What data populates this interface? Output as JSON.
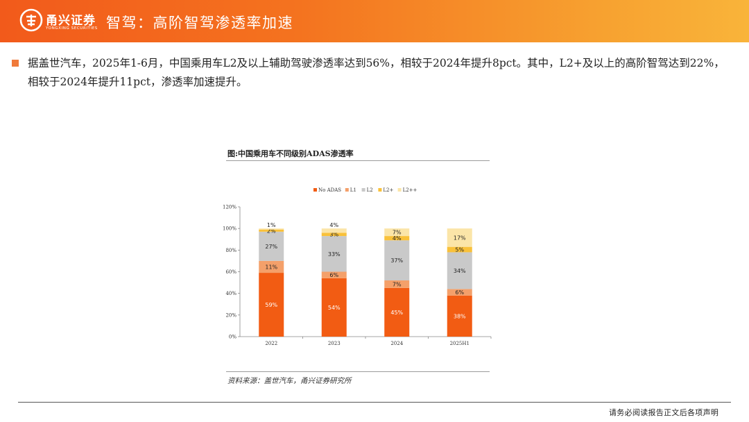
{
  "header": {
    "brand": "甬兴证券",
    "brand_en": "YONGXING SECURITIES",
    "title": "智驾：高阶智驾渗透率加速"
  },
  "bullet": "据盖世汽车，2025年1-6月，中国乘用车L2及以上辅助驾驶渗透率达到56%，相较于2024年提升8pct。其中，L2+及以上的高阶智驾达到22%，相较于2024年提升11pct，渗透率加速提升。",
  "figure": {
    "caption": "图:中国乘用车不同级别ADAS渗透率",
    "source": "资料来源：盖世汽车，甬兴证券研究所"
  },
  "footer": "请务必阅读报告正文后各项声明",
  "colors": {
    "header_start": "#f25a1b",
    "header_end": "#f9b43a",
    "bullet": "#f07a3a"
  },
  "chart_data": {
    "type": "bar",
    "stacked": true,
    "categories": [
      "2022",
      "2023",
      "2024",
      "2025H1"
    ],
    "series": [
      {
        "name": "No ADAS",
        "color": "#f25c13",
        "label_color": "#ffffff",
        "values": [
          59,
          54,
          45,
          38
        ]
      },
      {
        "name": "L1",
        "color": "#f4a06a",
        "label_color": "#222222",
        "values": [
          11,
          6,
          7,
          6
        ]
      },
      {
        "name": "L2",
        "color": "#c9c9c9",
        "label_color": "#222222",
        "values": [
          27,
          33,
          37,
          34
        ]
      },
      {
        "name": "L2+",
        "color": "#f9c13a",
        "label_color": "#222222",
        "values": [
          2,
          3,
          4,
          5
        ]
      },
      {
        "name": "L2++",
        "color": "#fbe5a8",
        "label_color": "#222222",
        "values": [
          1,
          4,
          7,
          17
        ]
      }
    ],
    "labels": [
      [
        "59%",
        "11%",
        "27%",
        "2%",
        "1%"
      ],
      [
        "54%",
        "6%",
        "33%",
        "3%",
        "4%"
      ],
      [
        "45%",
        "7%",
        "37%",
        "4%",
        "7%"
      ],
      [
        "38%",
        "6%",
        "34%",
        "5%",
        "17%"
      ]
    ],
    "y_ticks": [
      "0%",
      "20%",
      "40%",
      "60%",
      "80%",
      "100%",
      "120%"
    ],
    "ylim": [
      0,
      120
    ],
    "legend_position": "top"
  }
}
